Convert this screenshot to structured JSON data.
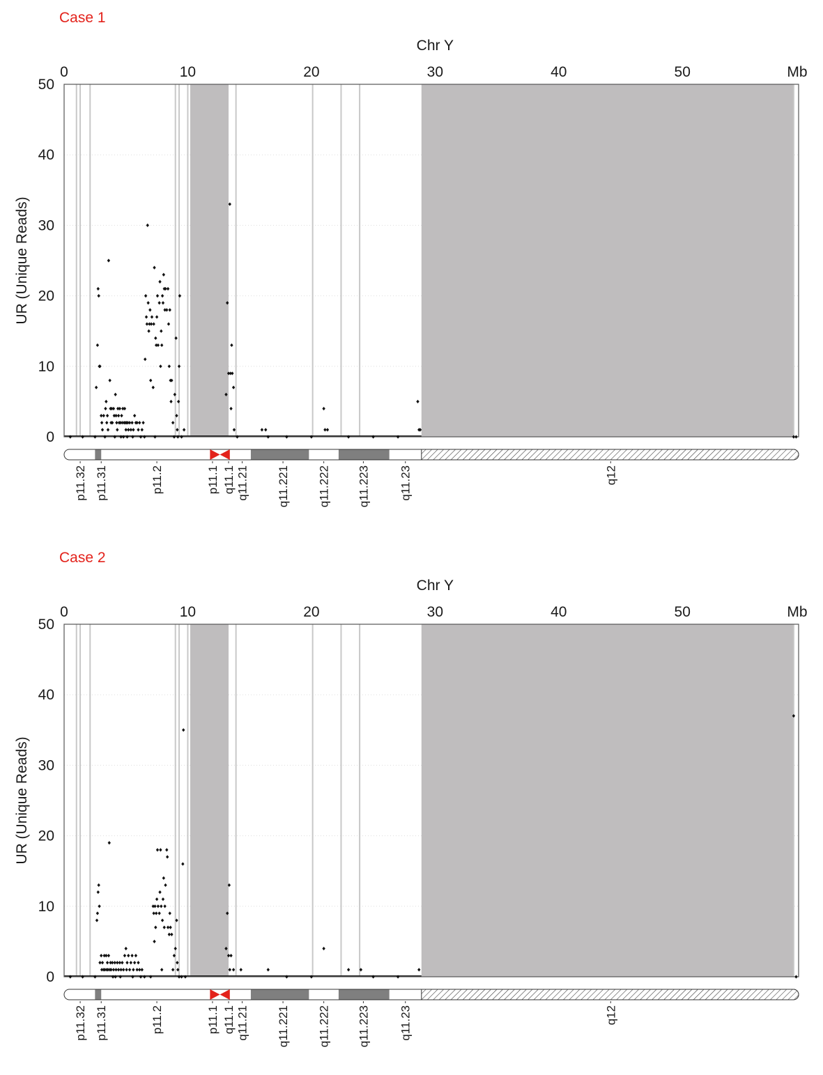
{
  "chart_data": [
    {
      "type": "scatter",
      "case_label": "Case 1",
      "title": "Chr Y",
      "ylabel": "UR (Unique Reads)",
      "x_unit": "Mb",
      "xlim": [
        0,
        59.4
      ],
      "ylim": [
        0,
        50
      ],
      "x_ticks": [
        0,
        10,
        20,
        30,
        40,
        50
      ],
      "y_ticks": [
        0,
        10,
        20,
        30,
        40,
        50
      ],
      "grid": "horizontal dotted",
      "shaded_regions": [
        [
          10.2,
          13.3
        ],
        [
          28.9,
          59.0
        ]
      ],
      "vertical_lines": [
        1.0,
        1.3,
        2.1,
        9.0,
        9.3,
        10.0,
        13.9,
        20.1,
        22.4,
        23.9,
        59.0
      ],
      "points": [
        [
          0.5,
          0
        ],
        [
          1.5,
          0
        ],
        [
          2.5,
          0
        ],
        [
          2.6,
          7
        ],
        [
          2.7,
          13
        ],
        [
          2.75,
          21
        ],
        [
          2.8,
          20
        ],
        [
          2.85,
          10
        ],
        [
          2.9,
          10
        ],
        [
          3.0,
          3
        ],
        [
          3.05,
          2
        ],
        [
          3.1,
          1
        ],
        [
          3.2,
          3
        ],
        [
          3.3,
          0
        ],
        [
          3.35,
          4
        ],
        [
          3.4,
          5
        ],
        [
          3.45,
          2
        ],
        [
          3.5,
          3
        ],
        [
          3.55,
          1
        ],
        [
          3.6,
          25
        ],
        [
          3.7,
          8
        ],
        [
          3.75,
          4
        ],
        [
          3.8,
          2
        ],
        [
          3.85,
          4
        ],
        [
          3.9,
          2
        ],
        [
          4.0,
          4
        ],
        [
          4.05,
          3
        ],
        [
          4.1,
          0
        ],
        [
          4.15,
          6
        ],
        [
          4.2,
          3
        ],
        [
          4.25,
          2
        ],
        [
          4.3,
          1
        ],
        [
          4.35,
          4
        ],
        [
          4.4,
          3
        ],
        [
          4.45,
          2
        ],
        [
          4.5,
          4
        ],
        [
          4.55,
          2
        ],
        [
          4.6,
          0
        ],
        [
          4.65,
          3
        ],
        [
          4.7,
          2
        ],
        [
          4.75,
          4
        ],
        [
          4.8,
          0
        ],
        [
          4.85,
          2
        ],
        [
          4.9,
          4
        ],
        [
          4.95,
          2
        ],
        [
          5.0,
          1
        ],
        [
          5.05,
          2
        ],
        [
          5.1,
          0
        ],
        [
          5.15,
          2
        ],
        [
          5.2,
          1
        ],
        [
          5.3,
          2
        ],
        [
          5.4,
          1
        ],
        [
          5.5,
          2
        ],
        [
          5.55,
          0
        ],
        [
          5.6,
          1
        ],
        [
          5.7,
          3
        ],
        [
          5.8,
          2
        ],
        [
          5.9,
          2
        ],
        [
          6.0,
          1
        ],
        [
          6.1,
          2
        ],
        [
          6.2,
          0
        ],
        [
          6.3,
          1
        ],
        [
          6.4,
          2
        ],
        [
          6.5,
          0
        ],
        [
          6.55,
          11
        ],
        [
          6.6,
          20
        ],
        [
          6.65,
          17
        ],
        [
          6.7,
          16
        ],
        [
          6.75,
          30
        ],
        [
          6.8,
          19
        ],
        [
          6.85,
          15
        ],
        [
          6.9,
          16
        ],
        [
          6.95,
          18
        ],
        [
          7.0,
          8
        ],
        [
          7.05,
          16
        ],
        [
          7.1,
          17
        ],
        [
          7.2,
          7
        ],
        [
          7.25,
          16
        ],
        [
          7.3,
          24
        ],
        [
          7.35,
          0
        ],
        [
          7.4,
          14
        ],
        [
          7.45,
          13
        ],
        [
          7.5,
          17
        ],
        [
          7.55,
          20
        ],
        [
          7.6,
          13
        ],
        [
          7.7,
          19
        ],
        [
          7.75,
          22
        ],
        [
          7.8,
          10
        ],
        [
          7.85,
          15
        ],
        [
          7.9,
          13
        ],
        [
          7.95,
          20
        ],
        [
          8.0,
          19
        ],
        [
          8.05,
          23
        ],
        [
          8.1,
          21
        ],
        [
          8.15,
          18
        ],
        [
          8.2,
          21
        ],
        [
          8.3,
          18
        ],
        [
          8.4,
          21
        ],
        [
          8.45,
          16
        ],
        [
          8.5,
          10
        ],
        [
          8.55,
          18
        ],
        [
          8.6,
          8
        ],
        [
          8.65,
          5
        ],
        [
          8.7,
          8
        ],
        [
          8.8,
          2
        ],
        [
          8.9,
          0
        ],
        [
          8.95,
          6
        ],
        [
          9.05,
          14
        ],
        [
          9.1,
          3
        ],
        [
          9.15,
          1
        ],
        [
          9.2,
          0
        ],
        [
          9.25,
          5
        ],
        [
          9.3,
          10
        ],
        [
          9.35,
          20
        ],
        [
          9.5,
          0
        ],
        [
          9.7,
          1
        ],
        [
          13.1,
          6
        ],
        [
          13.2,
          19
        ],
        [
          13.3,
          9
        ],
        [
          13.4,
          33
        ],
        [
          13.45,
          9
        ],
        [
          13.5,
          4
        ],
        [
          13.55,
          13
        ],
        [
          13.6,
          9
        ],
        [
          13.7,
          7
        ],
        [
          13.75,
          1
        ],
        [
          14.0,
          0
        ],
        [
          16.0,
          1
        ],
        [
          16.3,
          1
        ],
        [
          16.5,
          0
        ],
        [
          18.0,
          0
        ],
        [
          20.0,
          0
        ],
        [
          21.0,
          4
        ],
        [
          21.1,
          1
        ],
        [
          21.3,
          1
        ],
        [
          23.0,
          0
        ],
        [
          25.0,
          0
        ],
        [
          27.0,
          0
        ],
        [
          28.6,
          5
        ],
        [
          28.7,
          1
        ],
        [
          28.8,
          1
        ],
        [
          59.0,
          0
        ],
        [
          59.2,
          0
        ]
      ],
      "cytobands": {
        "labels": [
          "p11.32",
          "p11.31",
          "p11.2",
          "p11.1",
          "q11.1",
          "q11.21",
          "q11.221",
          "q11.222",
          "q11.223",
          "q11.23",
          "q12"
        ],
        "label_positions": [
          1.3,
          3.0,
          7.5,
          12.0,
          13.3,
          14.4,
          17.7,
          21.0,
          24.2,
          27.6,
          44.2
        ],
        "dark_bands": [
          [
            2.5,
            3.0
          ],
          [
            15.1,
            19.8
          ],
          [
            22.2,
            26.3
          ]
        ],
        "centromere": [
          11.8,
          13.4
        ],
        "heterochromatin": [
          28.9,
          59.4
        ]
      }
    },
    {
      "type": "scatter",
      "case_label": "Case 2",
      "title": "Chr Y",
      "ylabel": "UR (Unique Reads)",
      "x_unit": "Mb",
      "xlim": [
        0,
        59.4
      ],
      "ylim": [
        0,
        50
      ],
      "x_ticks": [
        0,
        10,
        20,
        30,
        40,
        50
      ],
      "y_ticks": [
        0,
        10,
        20,
        30,
        40,
        50
      ],
      "grid": "horizontal dotted",
      "shaded_regions": [
        [
          10.2,
          13.3
        ],
        [
          28.9,
          59.0
        ]
      ],
      "vertical_lines": [
        1.0,
        1.3,
        2.1,
        9.0,
        9.3,
        10.0,
        13.9,
        20.1,
        22.4,
        23.9,
        59.0
      ],
      "points": [
        [
          0.5,
          0
        ],
        [
          1.5,
          0
        ],
        [
          2.5,
          0
        ],
        [
          2.65,
          8
        ],
        [
          2.7,
          9
        ],
        [
          2.75,
          12
        ],
        [
          2.8,
          13
        ],
        [
          2.85,
          10
        ],
        [
          2.9,
          2
        ],
        [
          3.0,
          3
        ],
        [
          3.05,
          1
        ],
        [
          3.1,
          2
        ],
        [
          3.2,
          1
        ],
        [
          3.25,
          3
        ],
        [
          3.3,
          1
        ],
        [
          3.4,
          3
        ],
        [
          3.45,
          1
        ],
        [
          3.5,
          2
        ],
        [
          3.55,
          1
        ],
        [
          3.6,
          3
        ],
        [
          3.65,
          19
        ],
        [
          3.7,
          1
        ],
        [
          3.75,
          2
        ],
        [
          3.8,
          1
        ],
        [
          3.9,
          2
        ],
        [
          3.95,
          0
        ],
        [
          4.0,
          1
        ],
        [
          4.1,
          2
        ],
        [
          4.15,
          0
        ],
        [
          4.2,
          1
        ],
        [
          4.3,
          2
        ],
        [
          4.4,
          1
        ],
        [
          4.5,
          2
        ],
        [
          4.55,
          0
        ],
        [
          4.6,
          1
        ],
        [
          4.7,
          2
        ],
        [
          4.8,
          1
        ],
        [
          4.9,
          3
        ],
        [
          5.0,
          4
        ],
        [
          5.05,
          1
        ],
        [
          5.1,
          2
        ],
        [
          5.2,
          3
        ],
        [
          5.3,
          1
        ],
        [
          5.4,
          2
        ],
        [
          5.5,
          3
        ],
        [
          5.55,
          0
        ],
        [
          5.6,
          1
        ],
        [
          5.7,
          2
        ],
        [
          5.8,
          3
        ],
        [
          5.9,
          1
        ],
        [
          6.0,
          2
        ],
        [
          6.1,
          1
        ],
        [
          6.2,
          0
        ],
        [
          6.3,
          1
        ],
        [
          6.5,
          0
        ],
        [
          7.0,
          0
        ],
        [
          7.2,
          10
        ],
        [
          7.25,
          9
        ],
        [
          7.3,
          5
        ],
        [
          7.35,
          10
        ],
        [
          7.4,
          7
        ],
        [
          7.45,
          9
        ],
        [
          7.5,
          11
        ],
        [
          7.55,
          18
        ],
        [
          7.6,
          10
        ],
        [
          7.7,
          9
        ],
        [
          7.75,
          12
        ],
        [
          7.8,
          18
        ],
        [
          7.85,
          10
        ],
        [
          7.9,
          1
        ],
        [
          7.95,
          8
        ],
        [
          8.0,
          11
        ],
        [
          8.05,
          14
        ],
        [
          8.1,
          7
        ],
        [
          8.15,
          10
        ],
        [
          8.2,
          13
        ],
        [
          8.3,
          18
        ],
        [
          8.35,
          17
        ],
        [
          8.4,
          7
        ],
        [
          8.5,
          6
        ],
        [
          8.55,
          9
        ],
        [
          8.6,
          7
        ],
        [
          8.7,
          6
        ],
        [
          8.8,
          1
        ],
        [
          8.9,
          3
        ],
        [
          9.0,
          4
        ],
        [
          9.1,
          8
        ],
        [
          9.15,
          2
        ],
        [
          9.2,
          1
        ],
        [
          9.3,
          0
        ],
        [
          9.5,
          0
        ],
        [
          9.6,
          16
        ],
        [
          9.65,
          35
        ],
        [
          9.8,
          0
        ],
        [
          13.1,
          4
        ],
        [
          13.2,
          9
        ],
        [
          13.3,
          3
        ],
        [
          13.35,
          13
        ],
        [
          13.4,
          1
        ],
        [
          13.5,
          3
        ],
        [
          13.7,
          1
        ],
        [
          14.3,
          1
        ],
        [
          16.5,
          1
        ],
        [
          18.0,
          0
        ],
        [
          20.0,
          0
        ],
        [
          21.0,
          4
        ],
        [
          23.0,
          1
        ],
        [
          24.0,
          1
        ],
        [
          25.0,
          0
        ],
        [
          27.0,
          0
        ],
        [
          28.7,
          1
        ],
        [
          59.0,
          37
        ],
        [
          59.2,
          0
        ]
      ],
      "cytobands": {
        "labels": [
          "p11.32",
          "p11.31",
          "p11.2",
          "p11.1",
          "q11.1",
          "q11.21",
          "q11.221",
          "q11.222",
          "q11.223",
          "q11.23",
          "q12"
        ],
        "label_positions": [
          1.3,
          3.0,
          7.5,
          12.0,
          13.3,
          14.4,
          17.7,
          21.0,
          24.2,
          27.6,
          44.2
        ],
        "dark_bands": [
          [
            2.5,
            3.0
          ],
          [
            15.1,
            19.8
          ],
          [
            22.2,
            26.3
          ]
        ],
        "centromere": [
          11.8,
          13.4
        ],
        "heterochromatin": [
          28.9,
          59.4
        ]
      }
    }
  ],
  "colors": {
    "case_label": "#e3221b",
    "shaded_region": "#bfbdbe",
    "vertical_line": "#c8c8c8",
    "point": "#111111",
    "dark_band": "#7f7f7f",
    "centromere": "#e3221b",
    "axis": "#555555"
  }
}
